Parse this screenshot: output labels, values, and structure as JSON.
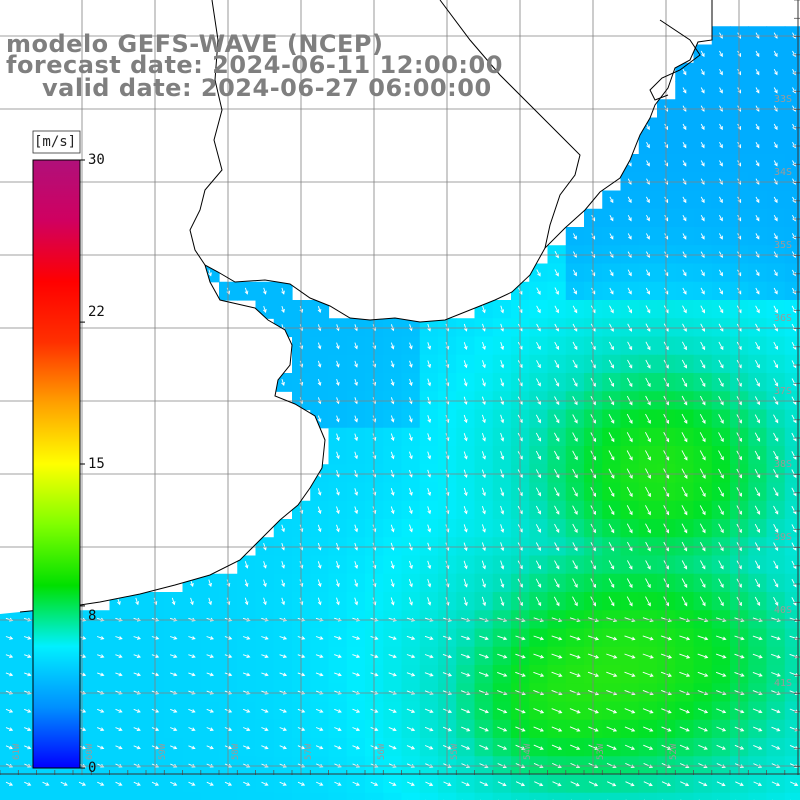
{
  "title": {
    "line1": "modelo GEFS-WAVE (NCEP)",
    "line2": "forecast date: 2024-06-11 12:00:00",
    "line3": "valid date: 2024-06-27 06:00:00"
  },
  "colorbar": {
    "unit": "[m/s]",
    "tick_labels": [
      "30",
      "22",
      "15",
      "8",
      "0"
    ],
    "tick_values": [
      30,
      22,
      15,
      8,
      0
    ],
    "min": 0,
    "max": 30,
    "colors": [
      "#0000ff",
      "#0090ff",
      "#00f0ff",
      "#00e000",
      "#80ff00",
      "#ffff00",
      "#ffa000",
      "#ff3000",
      "#ff0000",
      "#d00060",
      "#b0107a"
    ]
  },
  "axes": {
    "lat_labels": [
      "33S",
      "34S",
      "35S",
      "36S",
      "37S",
      "38S",
      "39S",
      "40S",
      "41S"
    ],
    "lon_labels": [
      "61W",
      "60W",
      "59W",
      "58W",
      "57W",
      "56W",
      "55W",
      "54W",
      "53W",
      "52W"
    ],
    "lat_range": [
      -42,
      -31.5
    ],
    "lon_range": [
      -62,
      -51
    ]
  },
  "colors": {
    "land": "#ffffff",
    "grid": "#808080",
    "coast": "#000000",
    "arrows": "#ffffff",
    "title_text": "#7f7f7f"
  }
}
